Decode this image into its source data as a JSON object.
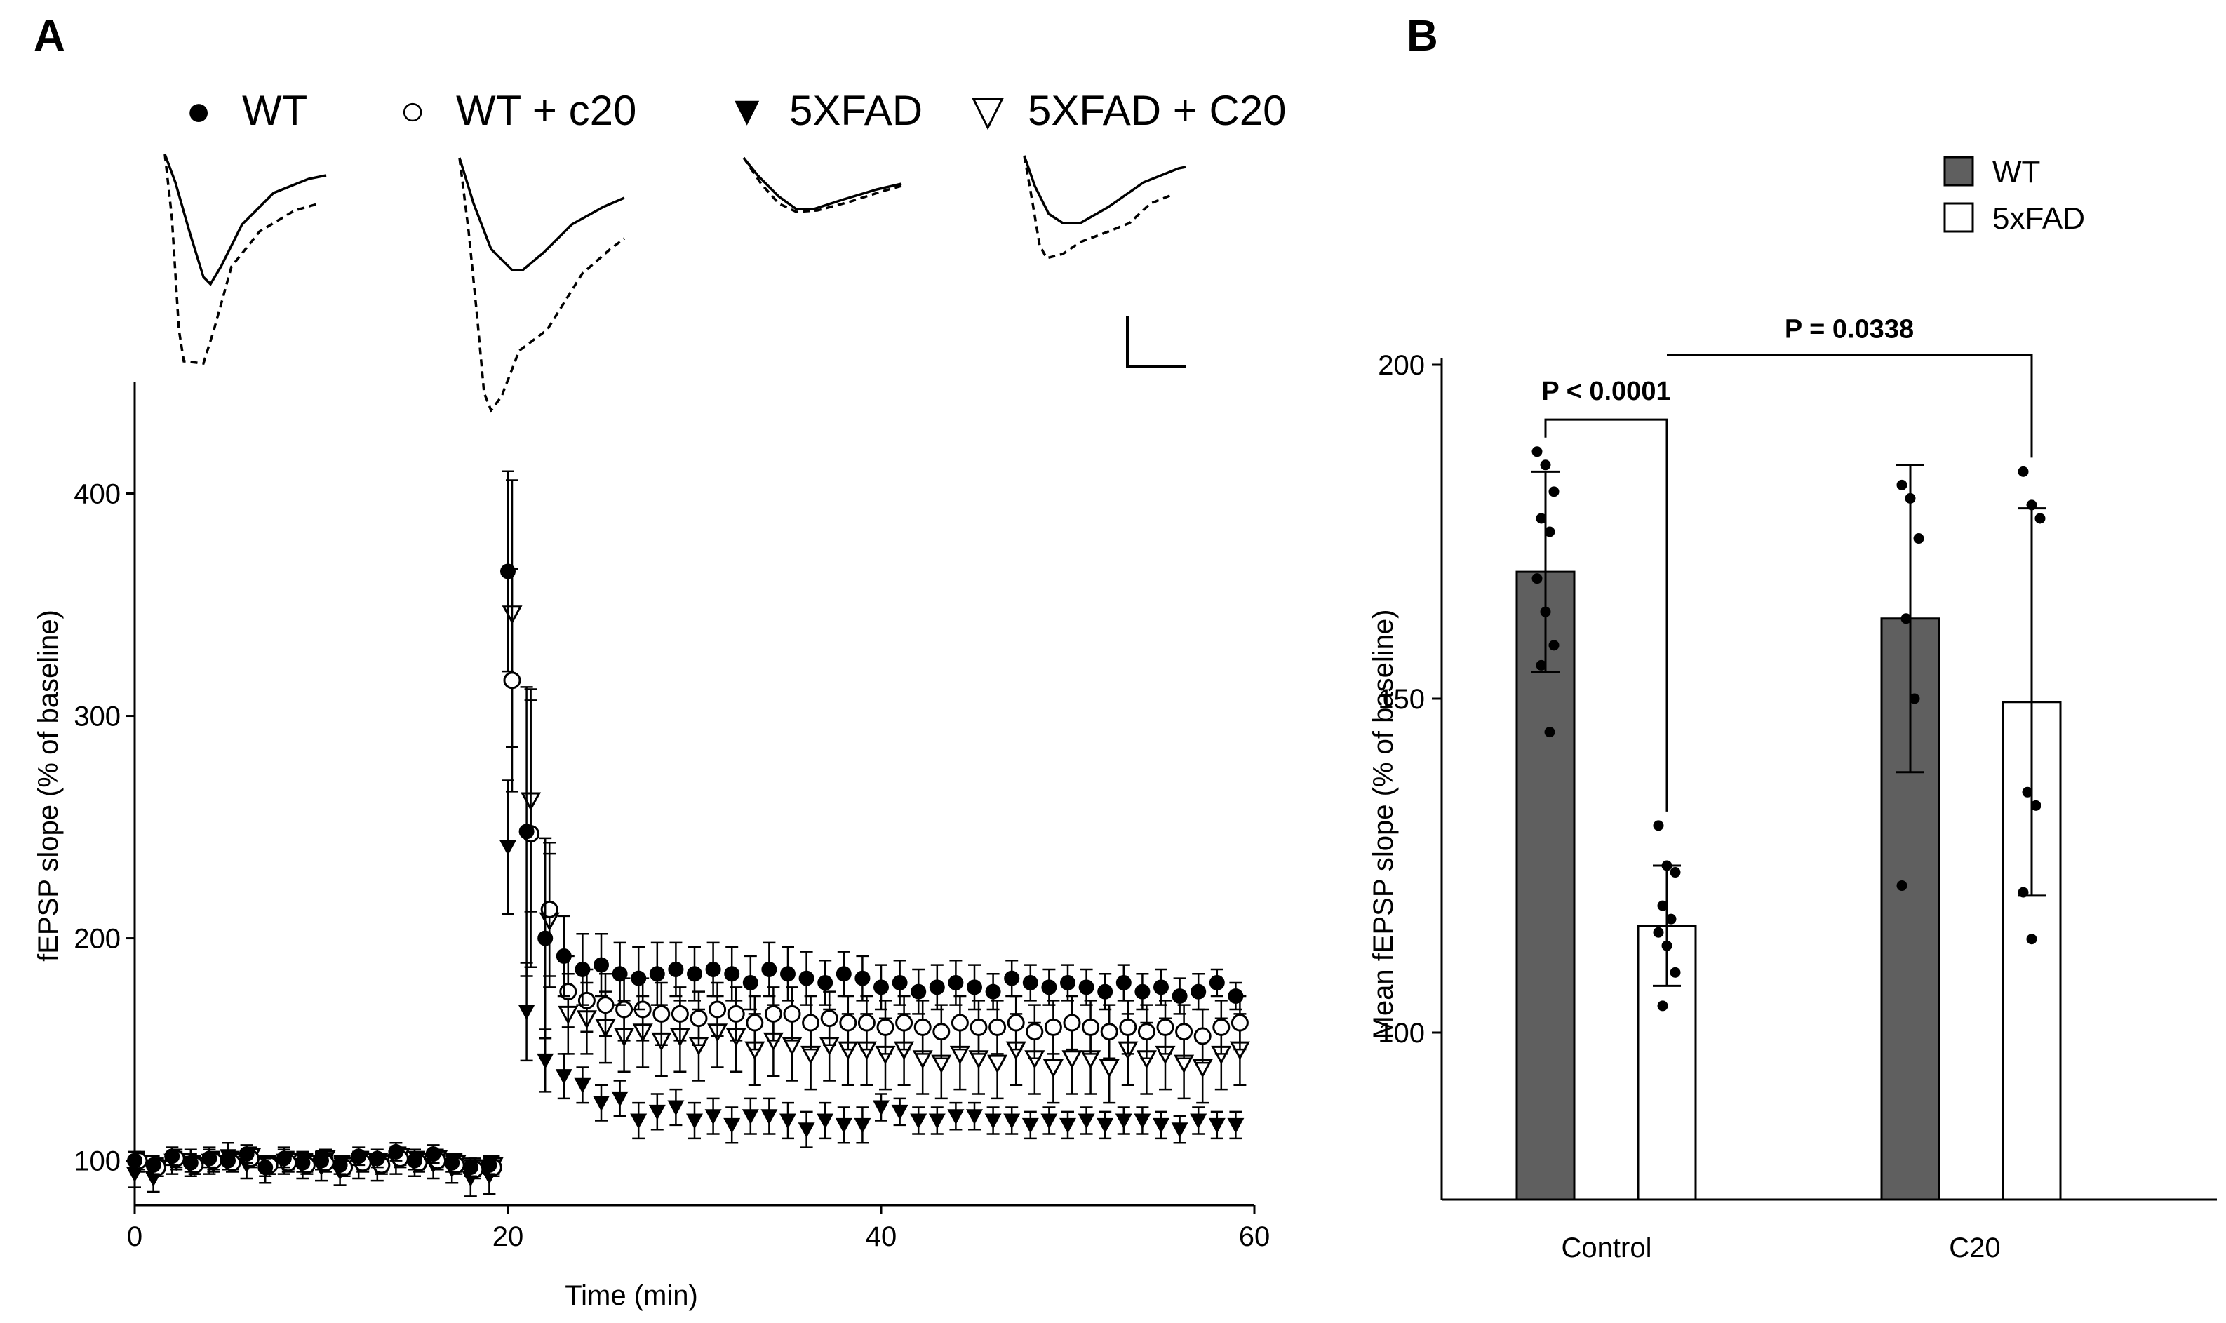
{
  "chart_data": [
    {
      "panel": "A",
      "type": "scatter",
      "xlabel": "Time (min)",
      "ylabel": "fEPSP slope (% of baseline)",
      "xlim": [
        0,
        60
      ],
      "ylim": [
        80,
        450
      ],
      "xticks": [
        0,
        20,
        40,
        60
      ],
      "yticks": [
        100,
        200,
        300,
        400
      ],
      "legend": [
        {
          "name": "WT",
          "marker": "filled-circle"
        },
        {
          "name": "WT + c20",
          "marker": "open-circle"
        },
        {
          "name": "5XFAD",
          "marker": "filled-triangle-down"
        },
        {
          "name": "5XFAD + C20",
          "marker": "open-triangle-down"
        }
      ],
      "legend_symbols": [
        "●",
        "○",
        "▼",
        "▽"
      ],
      "traces": [
        "WT",
        "WT + c20",
        "5XFAD",
        "5XFAD + C20"
      ],
      "series": [
        {
          "name": "WT",
          "x": [
            0,
            1,
            2,
            3,
            4,
            5,
            6,
            7,
            8,
            9,
            10,
            11,
            12,
            13,
            14,
            15,
            16,
            17,
            18,
            19,
            20,
            21,
            22,
            23,
            24,
            25,
            26,
            27,
            28,
            29,
            30,
            31,
            32,
            33,
            34,
            35,
            36,
            37,
            38,
            39,
            40,
            41,
            42,
            43,
            44,
            45,
            46,
            47,
            48,
            49,
            50,
            51,
            52,
            53,
            54,
            55,
            56,
            57,
            58,
            59
          ],
          "y": [
            100,
            98,
            102,
            99,
            101,
            100,
            103,
            97,
            101,
            99,
            100,
            98,
            102,
            101,
            104,
            100,
            103,
            99,
            97,
            98,
            365,
            248,
            200,
            192,
            186,
            188,
            184,
            182,
            184,
            186,
            184,
            186,
            184,
            180,
            186,
            184,
            182,
            180,
            184,
            182,
            178,
            180,
            176,
            178,
            180,
            178,
            176,
            182,
            180,
            178,
            180,
            178,
            176,
            180,
            176,
            178,
            174,
            176,
            180,
            174
          ],
          "err": [
            4,
            4,
            4,
            4,
            4,
            4,
            4,
            4,
            4,
            4,
            4,
            4,
            4,
            4,
            4,
            4,
            4,
            4,
            4,
            4,
            45,
            65,
            45,
            18,
            16,
            14,
            14,
            14,
            14,
            12,
            12,
            12,
            12,
            12,
            12,
            12,
            12,
            10,
            10,
            10,
            10,
            10,
            10,
            10,
            10,
            10,
            8,
            8,
            8,
            8,
            8,
            8,
            8,
            8,
            8,
            8,
            8,
            8,
            6,
            6
          ]
        },
        {
          "name": "WT + c20",
          "x": [
            0,
            1,
            2,
            3,
            4,
            5,
            6,
            7,
            8,
            9,
            10,
            11,
            12,
            13,
            14,
            15,
            16,
            17,
            18,
            19,
            20,
            21,
            22,
            23,
            24,
            25,
            26,
            27,
            28,
            29,
            30,
            31,
            32,
            33,
            34,
            35,
            36,
            37,
            38,
            39,
            40,
            41,
            42,
            43,
            44,
            45,
            46,
            47,
            48,
            49,
            50,
            51,
            52,
            53,
            54,
            55,
            56,
            57,
            58,
            59
          ],
          "y": [
            100,
            97,
            101,
            98,
            100,
            99,
            101,
            98,
            99,
            98,
            99,
            97,
            99,
            98,
            101,
            99,
            100,
            98,
            96,
            97,
            316,
            247,
            213,
            176,
            172,
            170,
            168,
            168,
            166,
            166,
            164,
            168,
            166,
            162,
            166,
            166,
            162,
            164,
            162,
            162,
            160,
            162,
            160,
            158,
            162,
            160,
            160,
            162,
            158,
            160,
            162,
            160,
            158,
            160,
            158,
            160,
            158,
            156,
            160,
            162
          ],
          "err": [
            4,
            4,
            4,
            4,
            4,
            4,
            4,
            4,
            4,
            4,
            4,
            4,
            4,
            4,
            4,
            4,
            4,
            4,
            4,
            4,
            50,
            60,
            30,
            16,
            14,
            14,
            14,
            14,
            14,
            12,
            12,
            12,
            12,
            12,
            12,
            12,
            12,
            12,
            12,
            12,
            12,
            12,
            12,
            12,
            12,
            12,
            12,
            12,
            12,
            12,
            12,
            12,
            12,
            12,
            12,
            12,
            12,
            12,
            12,
            12
          ]
        },
        {
          "name": "5XFAD",
          "x": [
            0,
            1,
            2,
            3,
            4,
            5,
            6,
            7,
            8,
            9,
            10,
            11,
            12,
            13,
            14,
            15,
            16,
            17,
            18,
            19,
            20,
            21,
            22,
            23,
            24,
            25,
            26,
            27,
            28,
            29,
            30,
            31,
            32,
            33,
            34,
            35,
            36,
            37,
            38,
            39,
            40,
            41,
            42,
            43,
            44,
            45,
            46,
            47,
            48,
            49,
            50,
            51,
            52,
            53,
            54,
            55,
            56,
            57,
            58,
            59
          ],
          "y": [
            94,
            92,
            100,
            99,
            100,
            102,
            98,
            96,
            100,
            98,
            97,
            95,
            98,
            97,
            100,
            99,
            98,
            96,
            92,
            93,
            241,
            167,
            145,
            138,
            134,
            126,
            128,
            118,
            122,
            124,
            118,
            120,
            116,
            120,
            120,
            118,
            114,
            118,
            116,
            116,
            124,
            122,
            118,
            118,
            120,
            120,
            118,
            118,
            116,
            118,
            116,
            118,
            116,
            118,
            118,
            116,
            114,
            118,
            116,
            116
          ],
          "err": [
            6,
            6,
            6,
            6,
            6,
            6,
            6,
            6,
            6,
            6,
            6,
            6,
            6,
            6,
            6,
            6,
            6,
            6,
            8,
            8,
            30,
            22,
            14,
            10,
            8,
            8,
            8,
            8,
            8,
            8,
            8,
            8,
            8,
            8,
            8,
            8,
            8,
            8,
            8,
            8,
            6,
            6,
            6,
            6,
            6,
            6,
            6,
            6,
            6,
            6,
            6,
            6,
            6,
            6,
            6,
            6,
            6,
            6,
            6,
            6
          ]
        },
        {
          "name": "5XFAD + C20",
          "x": [
            0,
            1,
            2,
            3,
            4,
            5,
            6,
            7,
            8,
            9,
            10,
            11,
            12,
            13,
            14,
            15,
            16,
            17,
            18,
            19,
            20,
            21,
            22,
            23,
            24,
            25,
            26,
            27,
            28,
            29,
            30,
            31,
            32,
            33,
            34,
            35,
            36,
            37,
            38,
            39,
            40,
            41,
            42,
            43,
            44,
            45,
            46,
            47,
            48,
            49,
            50,
            51,
            52,
            53,
            54,
            55,
            56,
            57,
            58,
            59
          ],
          "y": [
            99,
            97,
            100,
            98,
            99,
            100,
            102,
            98,
            100,
            99,
            101,
            98,
            100,
            99,
            102,
            100,
            101,
            99,
            97,
            98,
            346,
            262,
            208,
            166,
            164,
            160,
            156,
            158,
            154,
            156,
            152,
            158,
            156,
            150,
            154,
            152,
            148,
            152,
            150,
            150,
            148,
            150,
            146,
            144,
            148,
            146,
            144,
            150,
            146,
            142,
            146,
            146,
            142,
            150,
            146,
            148,
            144,
            142,
            148,
            150
          ],
          "err": [
            4,
            4,
            4,
            4,
            4,
            4,
            4,
            4,
            4,
            4,
            4,
            4,
            4,
            4,
            4,
            4,
            4,
            4,
            4,
            4,
            60,
            50,
            30,
            18,
            16,
            16,
            16,
            16,
            16,
            16,
            16,
            16,
            16,
            16,
            16,
            16,
            16,
            16,
            16,
            16,
            16,
            16,
            16,
            16,
            16,
            16,
            16,
            16,
            16,
            16,
            16,
            16,
            16,
            16,
            16,
            16,
            16,
            16,
            16,
            16
          ]
        }
      ]
    },
    {
      "panel": "B",
      "type": "bar",
      "categories": [
        "Control",
        "C20"
      ],
      "ylabel": "Mean fEPSP slope (% of baseline)",
      "ylim": [
        75,
        200
      ],
      "yticks": [
        100,
        150,
        200
      ],
      "legend": [
        {
          "name": "WT",
          "color": "#5f5f5f"
        },
        {
          "name": "5xFAD",
          "color": "#ffffff"
        }
      ],
      "series": [
        {
          "name": "WT",
          "values": [
            169,
            162
          ],
          "err": [
            15,
            23
          ],
          "points": [
            [
              187,
              185,
              181,
              177,
              175,
              168,
              163,
              158,
              155,
              145
            ],
            [
              182,
              180,
              174,
              162,
              150,
              122
            ]
          ]
        },
        {
          "name": "5xFAD",
          "values": [
            116,
            149.5
          ],
          "err": [
            9,
            29
          ],
          "points": [
            [
              131,
              125,
              124,
              119,
              117,
              115,
              113,
              109,
              104
            ],
            [
              184,
              179,
              177,
              136,
              134,
              121,
              114
            ]
          ]
        }
      ],
      "annotations": [
        {
          "text": "P < 0.0001",
          "between": "Control WT vs Control 5xFAD"
        },
        {
          "text": "P = 0.0338",
          "between": "Control 5xFAD vs C20 5xFAD"
        }
      ]
    }
  ]
}
